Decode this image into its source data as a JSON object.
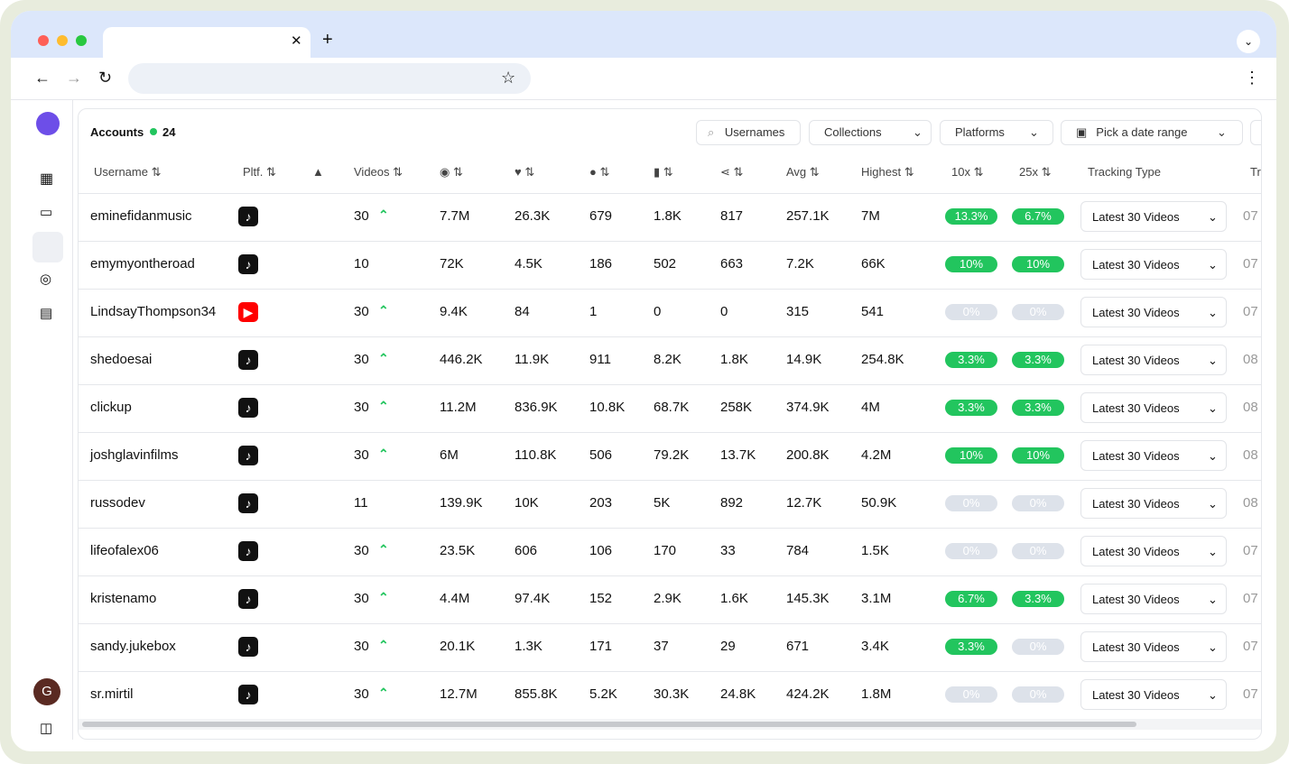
{
  "header": {
    "title": "Accounts",
    "count": "24"
  },
  "filters": {
    "usernames": "Usernames",
    "collections": "Collections",
    "platforms": "Platforms",
    "date": "Pick a date range"
  },
  "table": {
    "columns": {
      "username": "Username",
      "platform": "Pltf.",
      "videos": "Videos",
      "avg": "Avg",
      "highest": "Highest",
      "x10": "10x",
      "x25": "25x",
      "tracking": "Tracking Type",
      "tr": "Tr"
    },
    "rows": [
      {
        "username": "eminefidanmusic",
        "platform": "tiktok",
        "videos": 30,
        "trending": true,
        "views": "7.7M",
        "likes": "26.3K",
        "comments": "679",
        "saves": "1.8K",
        "shares": "817",
        "avg": "257.1K",
        "highest": "7M",
        "x10": {
          "text": "13.3%",
          "active": true
        },
        "x25": {
          "text": "6.7%",
          "active": true
        },
        "tracking": "Latest 30 Videos",
        "tr": "07"
      },
      {
        "username": "emymyontheroad",
        "platform": "tiktok",
        "videos": 10,
        "trending": false,
        "views": "72K",
        "likes": "4.5K",
        "comments": "186",
        "saves": "502",
        "shares": "663",
        "avg": "7.2K",
        "highest": "66K",
        "x10": {
          "text": "10%",
          "active": true
        },
        "x25": {
          "text": "10%",
          "active": true
        },
        "tracking": "Latest 30 Videos",
        "tr": "07"
      },
      {
        "username": "LindsayThompson34",
        "platform": "youtube",
        "videos": 30,
        "trending": true,
        "views": "9.4K",
        "likes": "84",
        "comments": "1",
        "saves": "0",
        "shares": "0",
        "avg": "315",
        "highest": "541",
        "x10": {
          "text": "0%",
          "active": false
        },
        "x25": {
          "text": "0%",
          "active": false
        },
        "tracking": "Latest 30 Videos",
        "tr": "07"
      },
      {
        "username": "shedoesai",
        "platform": "tiktok",
        "videos": 30,
        "trending": true,
        "views": "446.2K",
        "likes": "11.9K",
        "comments": "911",
        "saves": "8.2K",
        "shares": "1.8K",
        "avg": "14.9K",
        "highest": "254.8K",
        "x10": {
          "text": "3.3%",
          "active": true
        },
        "x25": {
          "text": "3.3%",
          "active": true
        },
        "tracking": "Latest 30 Videos",
        "tr": "08"
      },
      {
        "username": "clickup",
        "platform": "tiktok",
        "videos": 30,
        "trending": true,
        "views": "11.2M",
        "likes": "836.9K",
        "comments": "10.8K",
        "saves": "68.7K",
        "shares": "258K",
        "avg": "374.9K",
        "highest": "4M",
        "x10": {
          "text": "3.3%",
          "active": true
        },
        "x25": {
          "text": "3.3%",
          "active": true
        },
        "tracking": "Latest 30 Videos",
        "tr": "08"
      },
      {
        "username": "joshglavinfilms",
        "platform": "tiktok",
        "videos": 30,
        "trending": true,
        "views": "6M",
        "likes": "110.8K",
        "comments": "506",
        "saves": "79.2K",
        "shares": "13.7K",
        "avg": "200.8K",
        "highest": "4.2M",
        "x10": {
          "text": "10%",
          "active": true
        },
        "x25": {
          "text": "10%",
          "active": true
        },
        "tracking": "Latest 30 Videos",
        "tr": "08"
      },
      {
        "username": "russodev",
        "platform": "tiktok",
        "videos": 11,
        "trending": false,
        "views": "139.9K",
        "likes": "10K",
        "comments": "203",
        "saves": "5K",
        "shares": "892",
        "avg": "12.7K",
        "highest": "50.9K",
        "x10": {
          "text": "0%",
          "active": false
        },
        "x25": {
          "text": "0%",
          "active": false
        },
        "tracking": "Latest 30 Videos",
        "tr": "08"
      },
      {
        "username": "lifeofalex06",
        "platform": "tiktok",
        "videos": 30,
        "trending": true,
        "views": "23.5K",
        "likes": "606",
        "comments": "106",
        "saves": "170",
        "shares": "33",
        "avg": "784",
        "highest": "1.5K",
        "x10": {
          "text": "0%",
          "active": false
        },
        "x25": {
          "text": "0%",
          "active": false
        },
        "tracking": "Latest 30 Videos",
        "tr": "07"
      },
      {
        "username": "kristenamo",
        "platform": "tiktok",
        "videos": 30,
        "trending": true,
        "views": "4.4M",
        "likes": "97.4K",
        "comments": "152",
        "saves": "2.9K",
        "shares": "1.6K",
        "avg": "145.3K",
        "highest": "3.1M",
        "x10": {
          "text": "6.7%",
          "active": true
        },
        "x25": {
          "text": "3.3%",
          "active": true
        },
        "tracking": "Latest 30 Videos",
        "tr": "07"
      },
      {
        "username": "sandy.jukebox",
        "platform": "tiktok",
        "videos": 30,
        "trending": true,
        "views": "20.1K",
        "likes": "1.3K",
        "comments": "171",
        "saves": "37",
        "shares": "29",
        "avg": "671",
        "highest": "3.4K",
        "x10": {
          "text": "3.3%",
          "active": true
        },
        "x25": {
          "text": "0%",
          "active": false
        },
        "tracking": "Latest 30 Videos",
        "tr": "07"
      },
      {
        "username": "sr.mirtil",
        "platform": "tiktok",
        "videos": 30,
        "trending": true,
        "views": "12.7M",
        "likes": "855.8K",
        "comments": "5.2K",
        "saves": "30.3K",
        "shares": "24.8K",
        "avg": "424.2K",
        "highest": "1.8M",
        "x10": {
          "text": "0%",
          "active": false
        },
        "x25": {
          "text": "0%",
          "active": false
        },
        "tracking": "Latest 30 Videos",
        "tr": "07"
      }
    ]
  },
  "user": {
    "initial": "G"
  }
}
